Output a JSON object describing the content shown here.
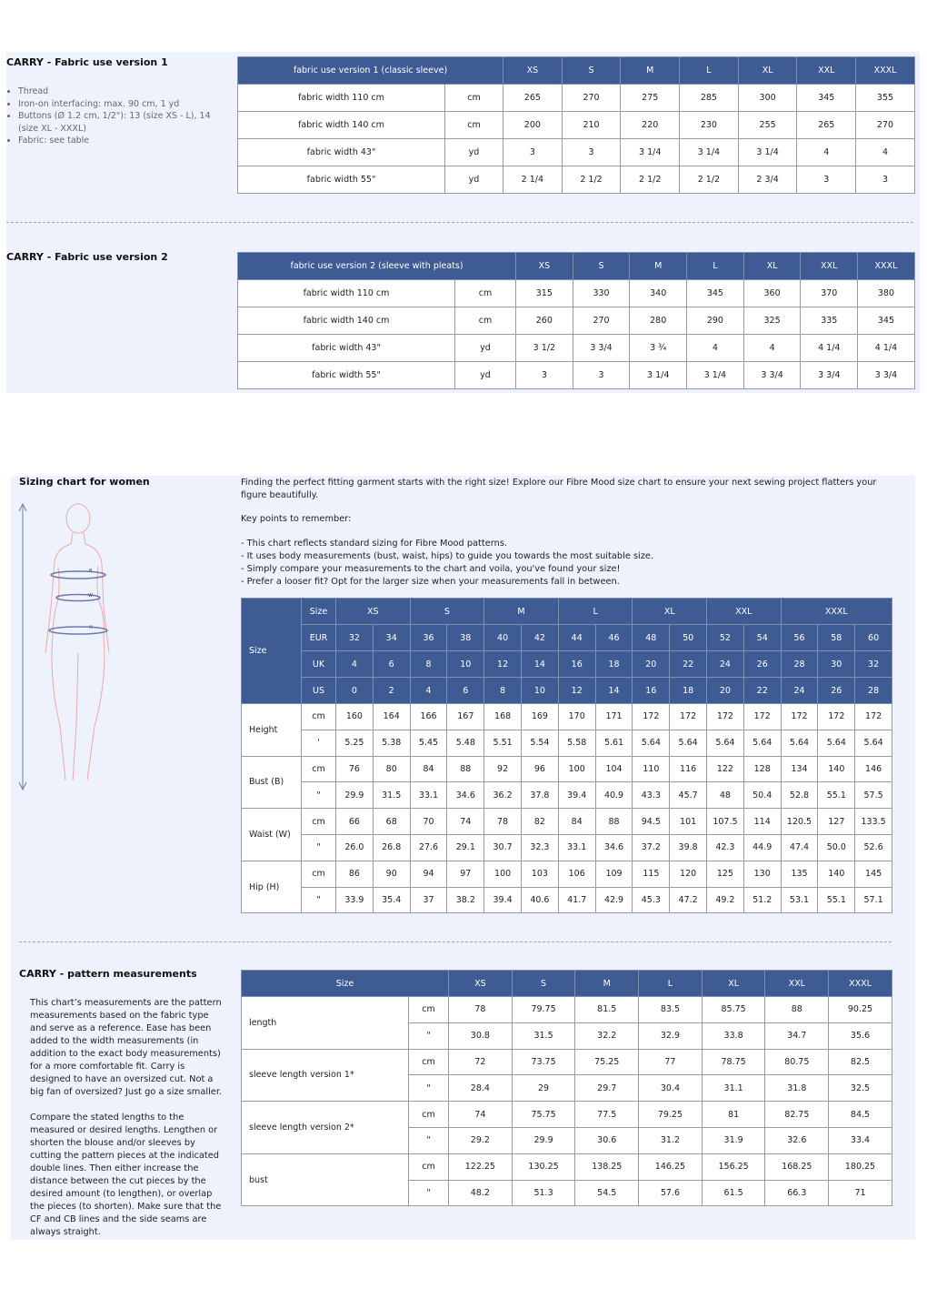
{
  "fabric_v1": {
    "title": "CARRY - Fabric use version 1",
    "items": [
      "Thread",
      "Iron-on interfacing: max. 90 cm, 1 yd",
      "Buttons (Ø 1.2 cm, 1/2\"): 13 (size XS - L), 14 (size XL - XXXL)",
      "Fabric: see table"
    ],
    "table": {
      "header": "fabric use version 1 (classic sleeve)",
      "sizes": [
        "XS",
        "S",
        "M",
        "L",
        "XL",
        "XXL",
        "XXXL"
      ],
      "rows": [
        {
          "label": "fabric width 110 cm",
          "unit": "cm",
          "values": [
            "265",
            "270",
            "275",
            "285",
            "300",
            "345",
            "355"
          ]
        },
        {
          "label": "fabric width 140 cm",
          "unit": "cm",
          "values": [
            "200",
            "210",
            "220",
            "230",
            "255",
            "265",
            "270"
          ]
        },
        {
          "label": "fabric width 43\"",
          "unit": "yd",
          "values": [
            "3",
            "3",
            "3 1/4",
            "3 1/4",
            "3 1/4",
            "4",
            "4"
          ]
        },
        {
          "label": "fabric width 55\"",
          "unit": "yd",
          "values": [
            "2 1/4",
            "2 1/2",
            "2 1/2",
            "2 1/2",
            "2 3/4",
            "3",
            "3"
          ]
        }
      ]
    }
  },
  "fabric_v2": {
    "title": "CARRY - Fabric use version 2",
    "table": {
      "header": "fabric use version 2 (sleeve with pleats)",
      "sizes": [
        "XS",
        "S",
        "M",
        "L",
        "XL",
        "XXL",
        "XXXL"
      ],
      "rows": [
        {
          "label": "fabric width 110 cm",
          "unit": "cm",
          "values": [
            "315",
            "330",
            "340",
            "345",
            "360",
            "370",
            "380"
          ]
        },
        {
          "label": "fabric width 140 cm",
          "unit": "cm",
          "values": [
            "260",
            "270",
            "280",
            "290",
            "325",
            "335",
            "345"
          ]
        },
        {
          "label": "fabric width 43\"",
          "unit": "yd",
          "values": [
            "3 1/2",
            "3 3/4",
            "3 ¾",
            "4",
            "4",
            "4 1/4",
            "4 1/4"
          ]
        },
        {
          "label": "fabric width 55\"",
          "unit": "yd",
          "values": [
            "3",
            "3",
            "3 1/4",
            "3 1/4",
            "3 3/4",
            "3 3/4",
            "3 3/4"
          ]
        }
      ]
    }
  },
  "sizing": {
    "title": "Sizing chart for women",
    "intro": "Finding the perfect fitting garment starts with the right size! Explore our Fibre Mood size chart to ensure your next sewing project flatters your figure beautifully.",
    "key_points_title": "Key points to remember:",
    "key_points": [
      "- This chart reflects standard sizing for Fibre Mood patterns.",
      "- It uses body measurements (bust, waist, hips) to guide you towards the most suitable size.",
      "- Simply compare your measurements to the chart and voila, you've found your size!",
      "- Prefer a looser fit? Opt for the larger size when your measurements fall in between."
    ],
    "figure_labels": [
      "B",
      "W",
      "H"
    ],
    "table": {
      "corner": "Size",
      "size_label": "Size",
      "sizes": [
        "XS",
        "S",
        "M",
        "L",
        "XL",
        "XXL",
        "XXXL"
      ],
      "systems": [
        {
          "name": "EUR",
          "values": [
            "32",
            "34",
            "36",
            "38",
            "40",
            "42",
            "44",
            "46",
            "48",
            "50",
            "52",
            "54",
            "56",
            "58",
            "60"
          ]
        },
        {
          "name": "UK",
          "values": [
            "4",
            "6",
            "8",
            "10",
            "12",
            "14",
            "16",
            "18",
            "20",
            "22",
            "24",
            "26",
            "28",
            "30",
            "32"
          ]
        },
        {
          "name": "US",
          "values": [
            "0",
            "2",
            "4",
            "6",
            "8",
            "10",
            "12",
            "14",
            "16",
            "18",
            "20",
            "22",
            "24",
            "26",
            "28"
          ]
        }
      ],
      "measures": [
        {
          "label": "Height",
          "rows": [
            {
              "unit": "cm",
              "values": [
                "160",
                "164",
                "166",
                "167",
                "168",
                "169",
                "170",
                "171",
                "172",
                "172",
                "172",
                "172",
                "172",
                "172",
                "172"
              ]
            },
            {
              "unit": "'",
              "values": [
                "5.25",
                "5.38",
                "5.45",
                "5.48",
                "5.51",
                "5.54",
                "5.58",
                "5.61",
                "5.64",
                "5.64",
                "5.64",
                "5.64",
                "5.64",
                "5.64",
                "5.64"
              ]
            }
          ]
        },
        {
          "label": "Bust (B)",
          "rows": [
            {
              "unit": "cm",
              "values": [
                "76",
                "80",
                "84",
                "88",
                "92",
                "96",
                "100",
                "104",
                "110",
                "116",
                "122",
                "128",
                "134",
                "140",
                "146"
              ]
            },
            {
              "unit": "\"",
              "values": [
                "29.9",
                "31.5",
                "33.1",
                "34.6",
                "36.2",
                "37.8",
                "39.4",
                "40.9",
                "43.3",
                "45.7",
                "48",
                "50.4",
                "52.8",
                "55.1",
                "57.5"
              ]
            }
          ]
        },
        {
          "label": "Waist (W)",
          "rows": [
            {
              "unit": "cm",
              "values": [
                "66",
                "68",
                "70",
                "74",
                "78",
                "82",
                "84",
                "88",
                "94.5",
                "101",
                "107.5",
                "114",
                "120.5",
                "127",
                "133.5"
              ]
            },
            {
              "unit": "\"",
              "values": [
                "26.0",
                "26.8",
                "27.6",
                "29.1",
                "30.7",
                "32.3",
                "33.1",
                "34.6",
                "37.2",
                "39.8",
                "42.3",
                "44.9",
                "47.4",
                "50.0",
                "52.6"
              ]
            }
          ]
        },
        {
          "label": "Hip (H)",
          "rows": [
            {
              "unit": "cm",
              "values": [
                "86",
                "90",
                "94",
                "97",
                "100",
                "103",
                "106",
                "109",
                "115",
                "120",
                "125",
                "130",
                "135",
                "140",
                "145"
              ]
            },
            {
              "unit": "\"",
              "values": [
                "33.9",
                "35.4",
                "37",
                "38.2",
                "39.4",
                "40.6",
                "41.7",
                "42.9",
                "45.3",
                "47.2",
                "49.2",
                "51.2",
                "53.1",
                "55.1",
                "57.1"
              ]
            }
          ]
        }
      ]
    }
  },
  "pattern": {
    "title": "CARRY - pattern measurements",
    "paragraphs": [
      "This chart’s measurements are the pattern measurements based on the fabric type and serve as a reference. Ease has been added to the width measurements (in addition to the exact body measurements) for a more comfortable fit. Carry is designed to have an oversized cut. Not a big fan of oversized? Just go a size smaller.",
      "Compare the stated lengths to the measured or desired lengths. Lengthen or shorten the blouse and/or sleeves by cutting the pattern pieces at the indicated double lines. Then either increase the distance between the cut pieces by the desired amount (to lengthen), or overlap the pieces (to shorten). Make sure that the CF and CB lines and the side seams are always straight."
    ],
    "table": {
      "header": "Size",
      "sizes": [
        "XS",
        "S",
        "M",
        "L",
        "XL",
        "XXL",
        "XXXL"
      ],
      "measures": [
        {
          "label": "length",
          "rows": [
            {
              "unit": "cm",
              "values": [
                "78",
                "79.75",
                "81.5",
                "83.5",
                "85.75",
                "88",
                "90.25"
              ]
            },
            {
              "unit": "\"",
              "values": [
                "30.8",
                "31.5",
                "32.2",
                "32.9",
                "33.8",
                "34.7",
                "35.6"
              ]
            }
          ]
        },
        {
          "label": "sleeve length version 1*",
          "rows": [
            {
              "unit": "cm",
              "values": [
                "72",
                "73.75",
                "75.25",
                "77",
                "78.75",
                "80.75",
                "82.5"
              ]
            },
            {
              "unit": "\"",
              "values": [
                "28.4",
                "29",
                "29.7",
                "30.4",
                "31.1",
                "31.8",
                "32.5"
              ]
            }
          ]
        },
        {
          "label": "sleeve length version 2*",
          "rows": [
            {
              "unit": "cm",
              "values": [
                "74",
                "75.75",
                "77.5",
                "79.25",
                "81",
                "82.75",
                "84.5"
              ]
            },
            {
              "unit": "\"",
              "values": [
                "29.2",
                "29.9",
                "30.6",
                "31.2",
                "31.9",
                "32.6",
                "33.4"
              ]
            }
          ]
        },
        {
          "label": "bust",
          "rows": [
            {
              "unit": "cm",
              "values": [
                "122.25",
                "130.25",
                "138.25",
                "146.25",
                "156.25",
                "168.25",
                "180.25"
              ]
            },
            {
              "unit": "\"",
              "values": [
                "48.2",
                "51.3",
                "54.5",
                "57.6",
                "61.5",
                "66.3",
                "71"
              ]
            }
          ]
        }
      ]
    }
  }
}
